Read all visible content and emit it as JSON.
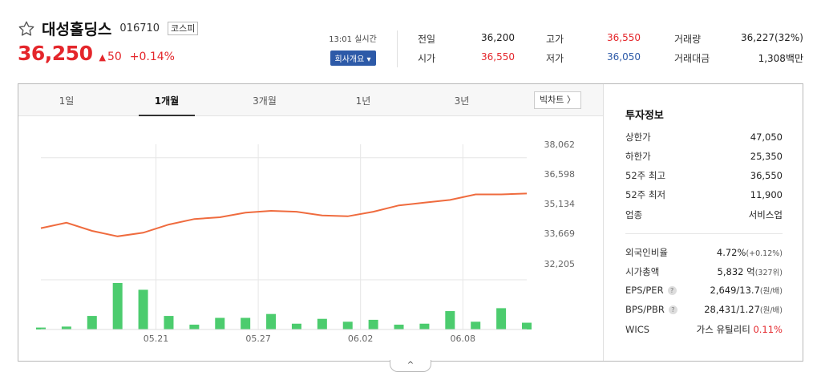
{
  "stock": {
    "name": "대성홀딩스",
    "code": "016710",
    "market": "코스피",
    "price": "36,250",
    "change_symbol": "▲",
    "change": "50",
    "change_pct": "+0.14%",
    "realtime_label": "13:01 실시간",
    "company_button": "회사개요 ▾"
  },
  "quotes": {
    "prev_close_label": "전일",
    "prev_close": "36,200",
    "open_label": "시가",
    "open": "36,550",
    "high_label": "고가",
    "high": "36,550",
    "low_label": "저가",
    "low": "36,050",
    "volume_label": "거래량",
    "volume": "36,227(32%)",
    "amount_label": "거래대금",
    "amount": "1,308백만"
  },
  "tabs": [
    "1일",
    "1개월",
    "3개월",
    "1년",
    "3년"
  ],
  "active_tab": "1개월",
  "bigchart_label": "빅차트 〉",
  "colors": {
    "up": "#e4262b",
    "down": "#2d5aa8",
    "line": "#ef6b3e",
    "volume": "#4ccc6e"
  },
  "chart_data": {
    "type": "line",
    "ylim": [
      31500,
      38800
    ],
    "y_ticks": [
      "38,062",
      "36,598",
      "35,134",
      "33,669",
      "32,205"
    ],
    "y_tick_values": [
      38062,
      36598,
      35134,
      33669,
      32205
    ],
    "x_labels": [
      "05.21",
      "05.27",
      "06.02",
      "06.08"
    ],
    "x_label_index": [
      4,
      8,
      12,
      16
    ],
    "price_series": [
      34200,
      34500,
      34050,
      33750,
      33950,
      34400,
      34700,
      34800,
      35050,
      35150,
      35100,
      34900,
      34850,
      35100,
      35450,
      35600,
      35750,
      36050,
      36050,
      36100
    ],
    "volume_series": [
      2,
      3,
      14,
      48,
      41,
      14,
      5,
      12,
      12,
      16,
      6,
      11,
      8,
      10,
      5,
      6,
      19,
      8,
      22,
      7
    ],
    "grid": true
  },
  "info": {
    "title": "투자정보",
    "upper_label": "상한가",
    "upper": "47,050",
    "lower_label": "하한가",
    "lower": "25,350",
    "w52_high_label": "52주 최고",
    "w52_high": "36,550",
    "w52_low_label": "52주 최저",
    "w52_low": "11,900",
    "sector_label": "업종",
    "sector": "서비스업",
    "foreign_label": "외국인비율",
    "foreign": "4.72%",
    "foreign_sub": "(+0.12%)",
    "mktcap_label": "시가총액",
    "mktcap": "5,832 억",
    "mktcap_sub": "(327위)",
    "eps_label": "EPS/PER",
    "eps": "2,649/13.7",
    "eps_sub": "(원/배)",
    "bps_label": "BPS/PBR",
    "bps": "28,431/1.27",
    "bps_sub": "(원/배)",
    "wics_label": "WICS",
    "wics": "가스 유틸리티",
    "wics_pct": "0.11%"
  },
  "toggle_label": "^"
}
